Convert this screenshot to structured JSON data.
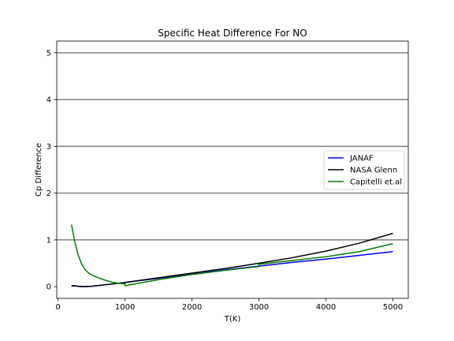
{
  "chart_data": {
    "type": "line",
    "title": "Specific Heat Difference For NO",
    "xlabel": "T(K)",
    "ylabel": "Cp Difference",
    "xlim": [
      -20,
      5230
    ],
    "ylim": [
      -0.25,
      5.25
    ],
    "x_ticks": [
      0,
      1000,
      2000,
      3000,
      4000,
      5000
    ],
    "y_ticks": [
      0,
      1,
      2,
      3,
      4,
      5
    ],
    "x_tick_labels": [
      "0",
      "1000",
      "2000",
      "3000",
      "4000",
      "5000"
    ],
    "y_tick_labels": [
      "0",
      "1",
      "2",
      "3",
      "4",
      "5"
    ],
    "gridlines_y": [
      1,
      2,
      3,
      4,
      5
    ],
    "legend_position": "center-right",
    "series": [
      {
        "name": "JANAF",
        "color": "#0000ff",
        "points": [
          [
            200,
            0.01
          ],
          [
            250,
            0.02
          ],
          [
            300,
            0.005
          ],
          [
            400,
            0.0
          ],
          [
            500,
            0.01
          ],
          [
            700,
            0.04
          ],
          [
            1000,
            0.09
          ],
          [
            1500,
            0.18
          ],
          [
            2000,
            0.27
          ],
          [
            2500,
            0.36
          ],
          [
            3000,
            0.44
          ],
          [
            3500,
            0.52
          ],
          [
            4000,
            0.59
          ],
          [
            4500,
            0.67
          ],
          [
            5000,
            0.75
          ]
        ]
      },
      {
        "name": "NASA Glenn",
        "color": "#000000",
        "points": [
          [
            200,
            0.02
          ],
          [
            250,
            0.02
          ],
          [
            300,
            0.01
          ],
          [
            400,
            0.0
          ],
          [
            500,
            0.01
          ],
          [
            700,
            0.04
          ],
          [
            1000,
            0.09
          ],
          [
            1500,
            0.19
          ],
          [
            2000,
            0.29
          ],
          [
            2500,
            0.39
          ],
          [
            3000,
            0.5
          ],
          [
            3500,
            0.62
          ],
          [
            4000,
            0.76
          ],
          [
            4500,
            0.93
          ],
          [
            5000,
            1.14
          ]
        ]
      },
      {
        "name": "Capitelli et.al",
        "color": "#008000",
        "points": [
          [
            200,
            1.33
          ],
          [
            250,
            0.95
          ],
          [
            300,
            0.68
          ],
          [
            350,
            0.49
          ],
          [
            400,
            0.37
          ],
          [
            450,
            0.3
          ],
          [
            500,
            0.25
          ],
          [
            600,
            0.19
          ],
          [
            700,
            0.14
          ],
          [
            800,
            0.1
          ],
          [
            900,
            0.07
          ],
          [
            1000,
            0.06
          ],
          [
            1000,
            0.02
          ],
          [
            1500,
            0.15
          ],
          [
            2000,
            0.26
          ],
          [
            2500,
            0.35
          ],
          [
            3000,
            0.43
          ],
          [
            3000,
            0.48
          ],
          [
            3500,
            0.56
          ],
          [
            4000,
            0.64
          ],
          [
            4500,
            0.75
          ],
          [
            5000,
            0.92
          ]
        ]
      }
    ]
  }
}
